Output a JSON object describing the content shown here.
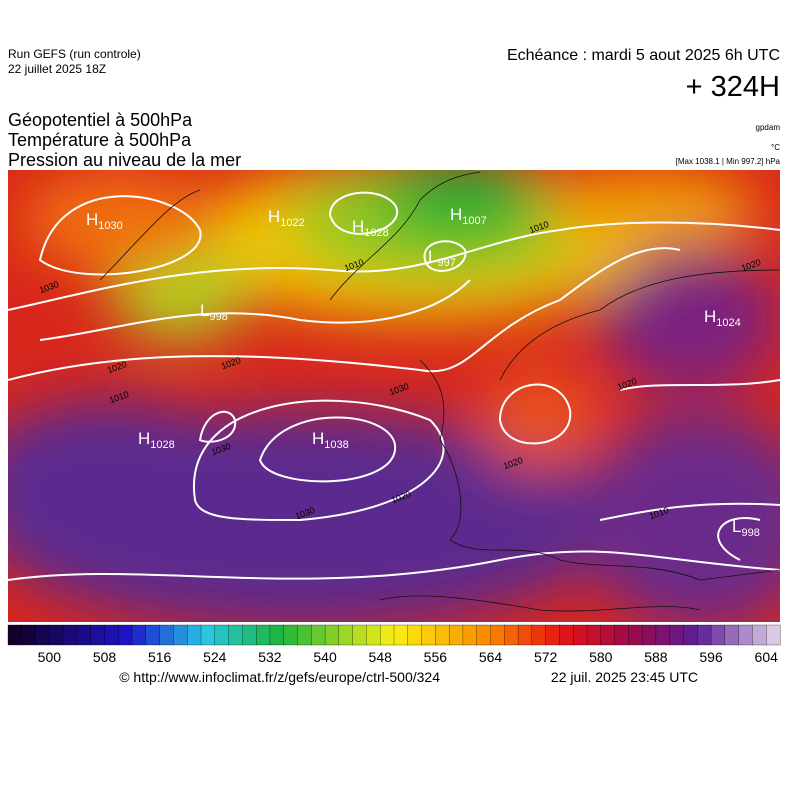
{
  "header": {
    "run": "Run GEFS (run controle)",
    "run_date": "22 juillet 2025 18Z",
    "valid": "Echéance : mardi 5 aout 2025 6h UTC",
    "lead": "+ 324H"
  },
  "fields": [
    "Géopotentiel à 500hPa",
    "Température à 500hPa",
    "Pression au niveau de la mer"
  ],
  "units": {
    "geopotential": "gpdam",
    "temperature": "°C",
    "pressure": "[Max 1038.1 | Min 997.2] hPa"
  },
  "centers": [
    {
      "letter": "H",
      "value": "1030"
    },
    {
      "letter": "H",
      "value": "1022"
    },
    {
      "letter": "H",
      "value": "1028"
    },
    {
      "letter": "H",
      "value": "1007"
    },
    {
      "letter": "L",
      "value": "997"
    },
    {
      "letter": "L",
      "value": "998"
    },
    {
      "letter": "H",
      "value": "1024"
    },
    {
      "letter": "H",
      "value": "1028"
    },
    {
      "letter": "H",
      "value": "1038"
    },
    {
      "letter": "L",
      "value": "998"
    }
  ],
  "isobar_labels": [
    "1010",
    "1020",
    "1030",
    "1030",
    "1030",
    "1020",
    "1020",
    "1010",
    "1020",
    "1010",
    "1010",
    "1020",
    "1030",
    "1020"
  ],
  "colorbar": {
    "range": [
      494,
      606
    ],
    "ticks": [
      500,
      508,
      516,
      524,
      532,
      540,
      548,
      556,
      564,
      572,
      580,
      588,
      596,
      604
    ]
  },
  "footer": {
    "url": "© http://www.infoclimat.fr/z/gefs/europe/ctrl-500/324",
    "generated": "22 juil. 2025 23:45 UTC"
  }
}
